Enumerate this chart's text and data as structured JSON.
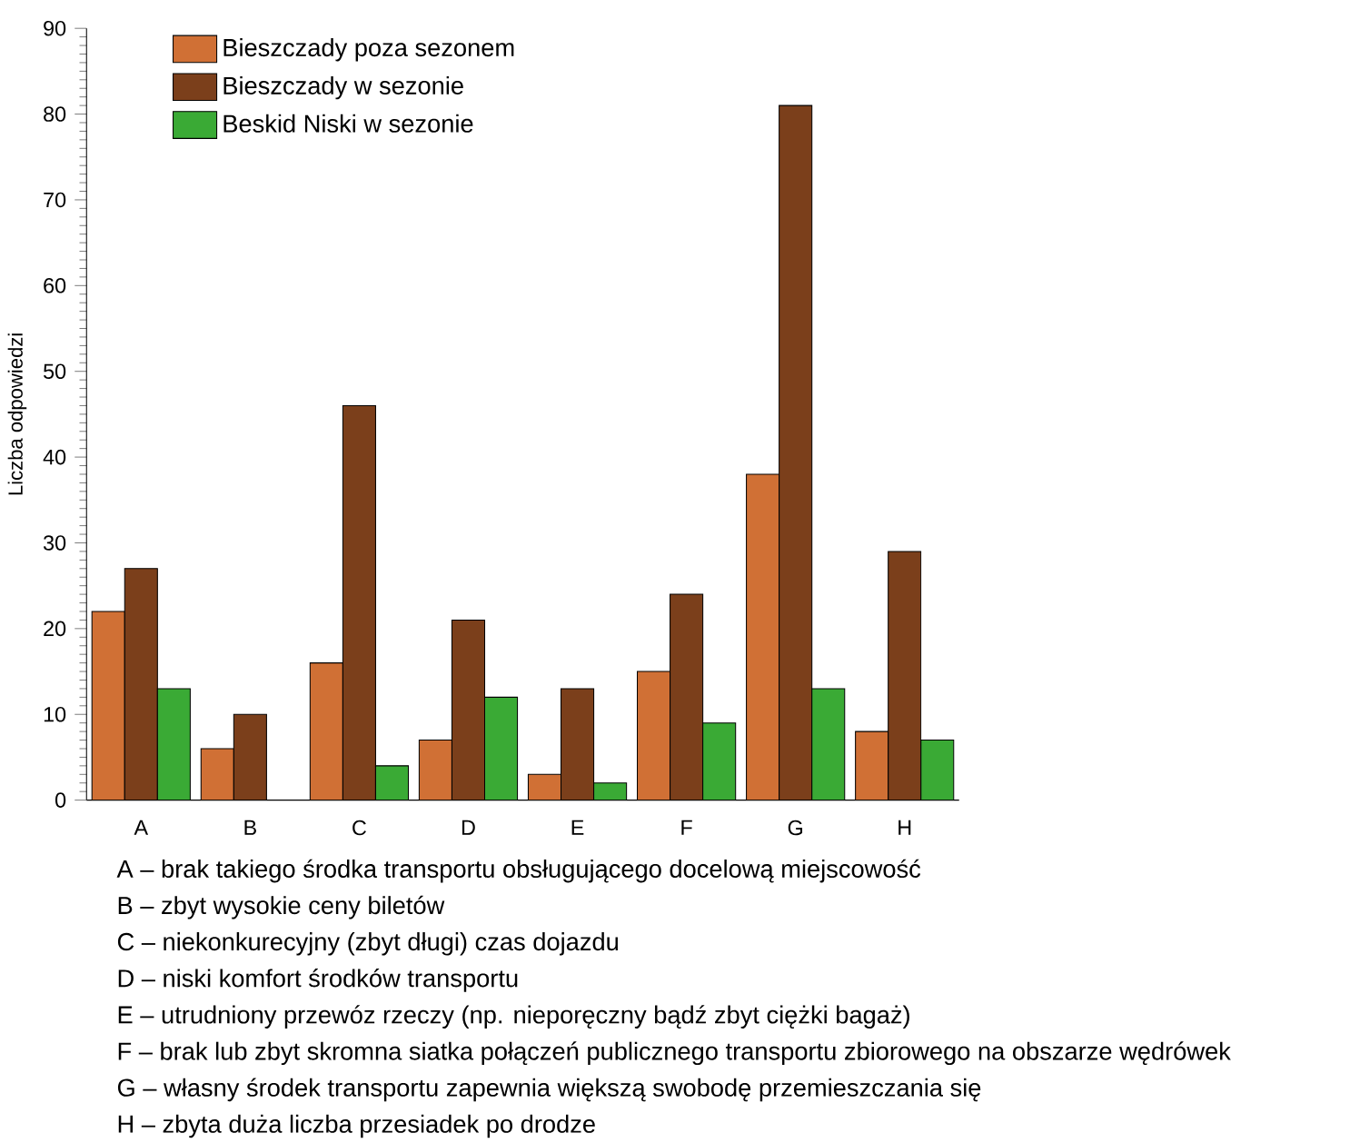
{
  "chart_data": {
    "type": "bar",
    "ylabel": "Liczba odpowiedzi",
    "categories": [
      "A",
      "B",
      "C",
      "D",
      "E",
      "F",
      "G",
      "H"
    ],
    "series": [
      {
        "name": "Bieszczady poza sezonem",
        "color": "#d07035",
        "values": [
          22,
          6,
          16,
          7,
          3,
          15,
          38,
          8
        ]
      },
      {
        "name": "Bieszczady w sezonie",
        "color": "#7b3f1b",
        "values": [
          27,
          10,
          46,
          21,
          13,
          24,
          81,
          29
        ]
      },
      {
        "name": "Beskid Niski w sezonie",
        "color": "#3aaa35",
        "values": [
          13,
          null,
          4,
          12,
          2,
          9,
          13,
          7
        ]
      }
    ],
    "ylim": [
      0,
      90
    ],
    "yticks": [
      0,
      10,
      20,
      30,
      40,
      50,
      60,
      70,
      80,
      90
    ],
    "grid": false,
    "legend": "top left",
    "annotations": [
      "A – brak takiego środka transportu obsługującego docelową miejscowość",
      "B – zbyt wysokie ceny biletów",
      "C – niekonkurecyjny (zbyt długi) czas dojazdu",
      "D – niski komfort środków transportu",
      "E – utrudniony przewóz rzeczy (np. nieporęczny bądź zbyt ciężki bagaż)",
      "F – brak lub zbyt skromna siatka połączeń publicznego transportu zbiorowego na obszarze wędrówek",
      "G – własny środek transportu zapewnia większą swobodę przemieszczania się",
      "H – zbyta duża liczba przesiadek po drodze"
    ]
  }
}
